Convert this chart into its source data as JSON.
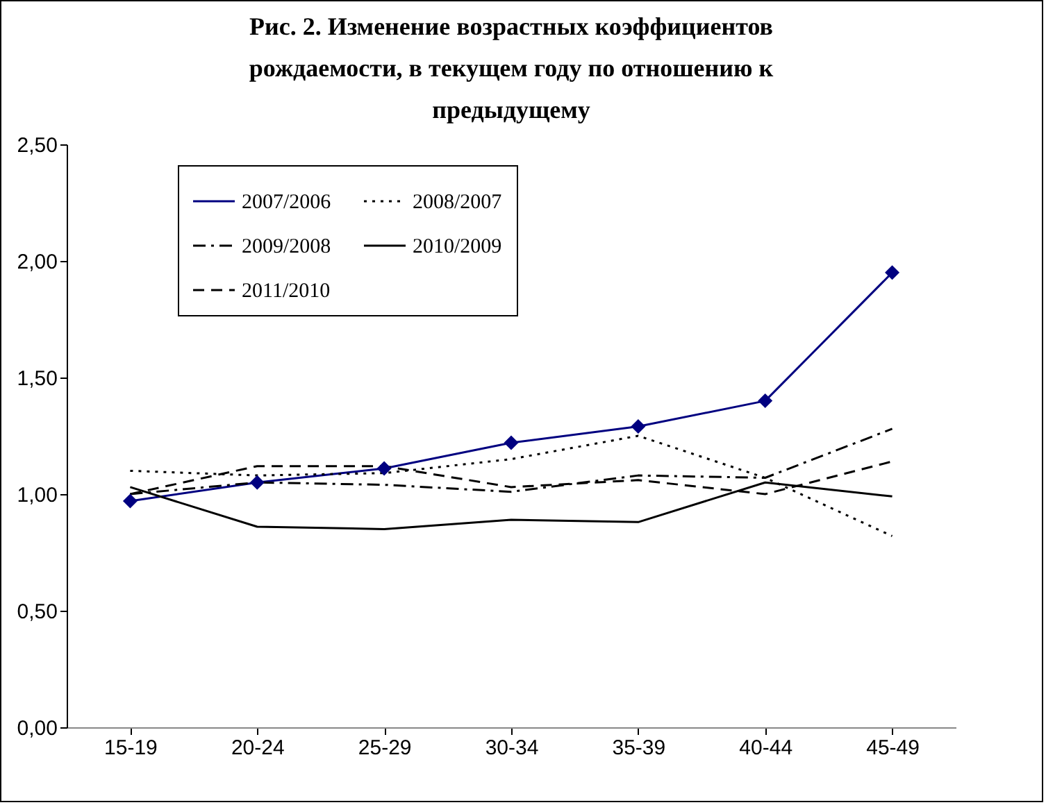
{
  "chart_data": {
    "type": "line",
    "title": "Рис. 2. Изменение возрастных коэффициентов рождаемости, в текущем году по отношению к предыдущему",
    "categories": [
      "15-19",
      "20-24",
      "25-29",
      "30-34",
      "35-39",
      "40-44",
      "45-49"
    ],
    "series": [
      {
        "name": "2007/2006",
        "color": "#000080",
        "line_style": "solid",
        "marker": "diamond",
        "values": [
          0.97,
          1.05,
          1.11,
          1.22,
          1.29,
          1.4,
          1.95
        ]
      },
      {
        "name": "2008/2007",
        "color": "#000000",
        "line_style": "dotted",
        "marker": "none",
        "values": [
          1.1,
          1.08,
          1.09,
          1.15,
          1.25,
          1.07,
          0.82
        ]
      },
      {
        "name": "2009/2008",
        "color": "#000000",
        "line_style": "dashdot",
        "marker": "none",
        "values": [
          1.0,
          1.05,
          1.04,
          1.01,
          1.08,
          1.07,
          1.28
        ]
      },
      {
        "name": "2010/2009",
        "color": "#000000",
        "line_style": "solid",
        "marker": "none",
        "values": [
          1.03,
          0.86,
          0.85,
          0.89,
          0.88,
          1.05,
          0.99
        ]
      },
      {
        "name": "2011/2010",
        "color": "#000000",
        "line_style": "dashed",
        "marker": "none",
        "values": [
          1.0,
          1.12,
          1.12,
          1.03,
          1.06,
          1.0,
          1.14
        ]
      }
    ],
    "ylim": [
      0,
      2.5
    ],
    "yticks": [
      {
        "value": 0,
        "label": "0,00"
      },
      {
        "value": 0.5,
        "label": "0,50"
      },
      {
        "value": 1,
        "label": "1,00"
      },
      {
        "value": 1.5,
        "label": "1,50"
      },
      {
        "value": 2,
        "label": "2,00"
      },
      {
        "value": 2.5,
        "label": "2,50"
      }
    ],
    "grid": false,
    "legend": "top left"
  }
}
